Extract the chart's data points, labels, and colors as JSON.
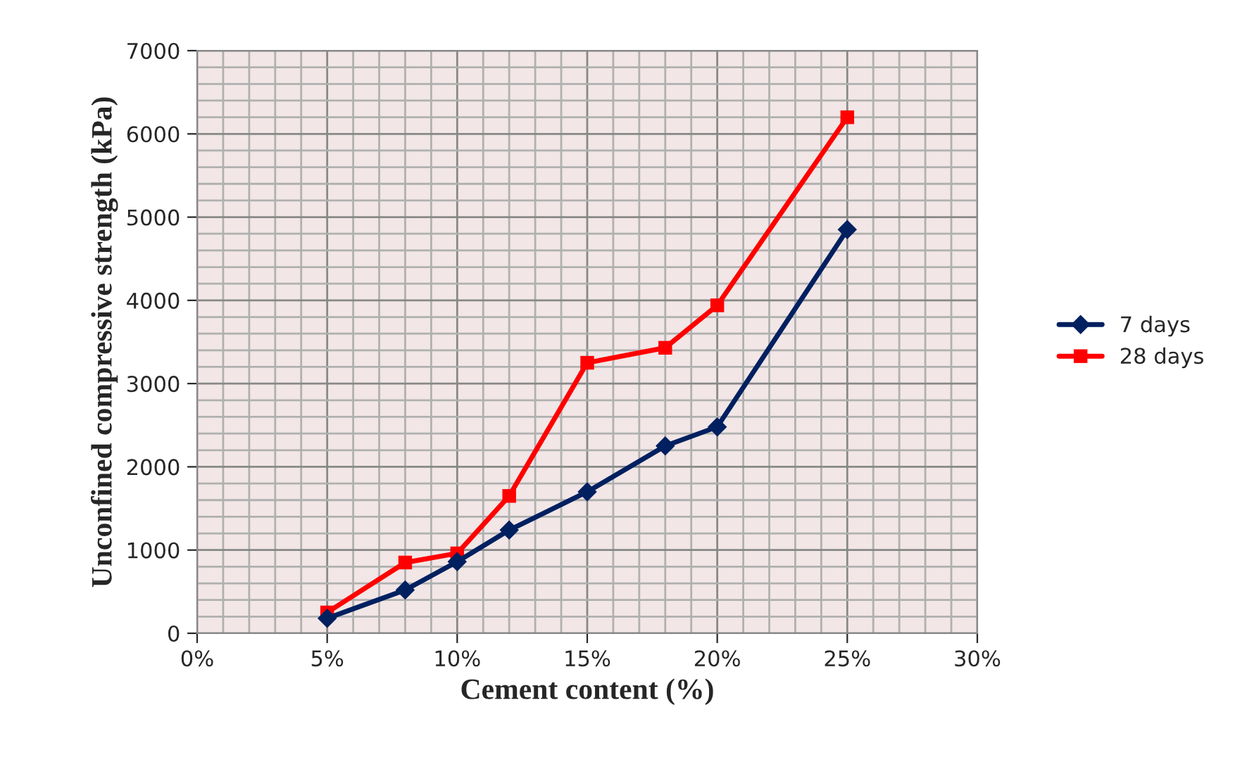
{
  "chart_data": {
    "type": "line",
    "xlabel": "Cement content (%)",
    "ylabel": "Unconfined compressive strength (kPa)",
    "x": [
      5,
      8,
      10,
      12,
      15,
      18,
      20,
      25
    ],
    "series": [
      {
        "name": "7 days",
        "color": "#002060",
        "marker": "diamond",
        "values": [
          180,
          520,
          860,
          1240,
          1700,
          2250,
          2480,
          4850
        ]
      },
      {
        "name": "28 days",
        "color": "#ff0000",
        "marker": "square",
        "values": [
          250,
          850,
          960,
          1650,
          3250,
          3430,
          3940,
          6200
        ]
      }
    ],
    "xlim": [
      0,
      30
    ],
    "xticks": [
      {
        "value": 0,
        "label": "0%"
      },
      {
        "value": 5,
        "label": "5%"
      },
      {
        "value": 10,
        "label": "10%"
      },
      {
        "value": 15,
        "label": "15%"
      },
      {
        "value": 20,
        "label": "20%"
      },
      {
        "value": 25,
        "label": "25%"
      },
      {
        "value": 30,
        "label": "30%"
      }
    ],
    "ylim": [
      0,
      7000
    ],
    "yticks": [
      0,
      1000,
      2000,
      3000,
      4000,
      5000,
      6000,
      7000
    ],
    "grid": true,
    "legend": "right",
    "line_style": "solid"
  }
}
